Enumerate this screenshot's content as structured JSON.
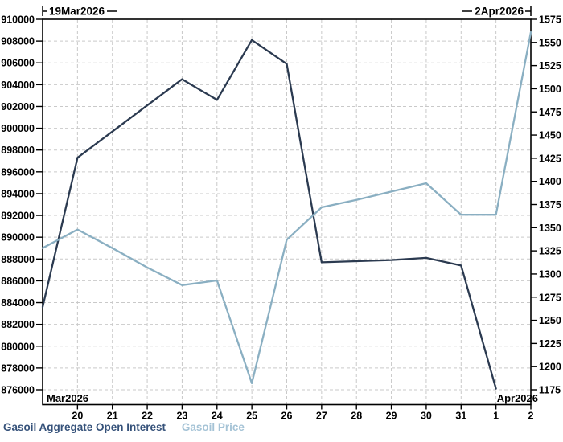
{
  "chart_data": {
    "type": "line",
    "title": "",
    "date_range": {
      "start": "19Mar2026",
      "end": "2Apr2026"
    },
    "x_tick_labels": [
      "20",
      "21",
      "22",
      "23",
      "24",
      "25",
      "26",
      "27",
      "28",
      "29",
      "30",
      "31",
      "1",
      "2"
    ],
    "x_dates": [
      "19Mar2026",
      "20Mar2026",
      "21Mar2026",
      "22Mar2026",
      "23Mar2026",
      "24Mar2026",
      "25Mar2026",
      "26Mar2026",
      "27Mar2026",
      "28Mar2026",
      "29Mar2026",
      "30Mar2026",
      "31Mar2026",
      "1Apr2026",
      "2Apr2026"
    ],
    "month_labels": {
      "start": "Mar2026",
      "end": "Apr2026"
    },
    "annotations": {
      "top_left": "19Mar2026",
      "top_right": "2Apr2026"
    },
    "left_axis": {
      "min": 876000,
      "max": 910000,
      "step": 2000,
      "tick_labels": [
        "910000",
        "908000",
        "906000",
        "904000",
        "902000",
        "900000",
        "898000",
        "896000",
        "894000",
        "892000",
        "890000",
        "888000",
        "886000",
        "884000",
        "882000",
        "880000",
        "878000",
        "876000"
      ]
    },
    "right_axis": {
      "min": 1175,
      "max": 1575,
      "step": 25,
      "tick_labels": [
        "1575",
        "1550",
        "1525",
        "1500",
        "1475",
        "1450",
        "1425",
        "1400",
        "1375",
        "1350",
        "1325",
        "1300",
        "1275",
        "1250",
        "1225",
        "1200",
        "1175"
      ]
    },
    "grid": true,
    "legend_position": "bottom-left",
    "series": [
      {
        "name": "Gasoil Aggregate Open Interest",
        "axis": "left",
        "color": "#2b3a50",
        "legend_color": "#36527a",
        "values": [
          883600,
          897300,
          899700,
          902100,
          904500,
          902600,
          908100,
          905900,
          887700,
          887800,
          887900,
          888100,
          887400,
          876100,
          null
        ]
      },
      {
        "name": "Gasoil Price",
        "axis": "right",
        "color": "#8aafc2",
        "legend_color": "#a5c3d6",
        "values": [
          1328,
          1348,
          1328,
          1307,
          1288,
          1293,
          1182,
          1337,
          1372,
          1380,
          1389,
          1398,
          1364,
          1364,
          1561
        ]
      }
    ],
    "colors": {
      "axis": "#000000",
      "grid": "#c9c9c9",
      "background": "#ffffff"
    }
  }
}
